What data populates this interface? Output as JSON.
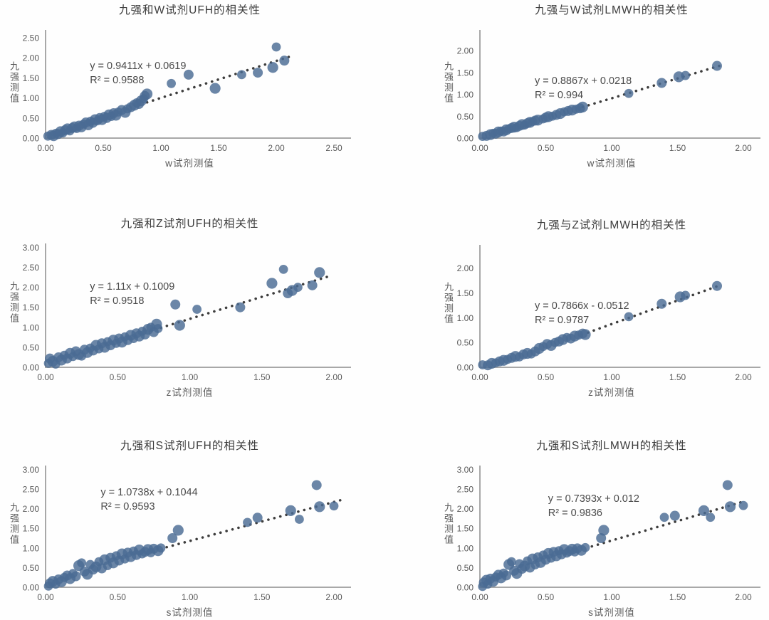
{
  "page": {
    "background": "#fefefe"
  },
  "colors": {
    "point": "#4a6b94",
    "trend_dots": "#3d3d3d",
    "axis": "#a8a8a8",
    "tick_text": "#595959",
    "title_text": "#3c3c3c",
    "equation_text": "#4a4a4a"
  },
  "chart_data": [
    {
      "type": "scatter",
      "title": "九强和W试剂UFH的相关性",
      "xlabel": "w试剂测值",
      "ylabel": "九强测值",
      "equation": "y = 0.9411x + 0.0619",
      "r_squared": "R² = 0.9588",
      "xlim": [
        0,
        2.5
      ],
      "ylim": [
        0,
        2.5
      ],
      "xticks": [
        "0.00",
        "0.50",
        "1.00",
        "1.50",
        "2.00",
        "2.50"
      ],
      "yticks": [
        "0.00",
        "0.50",
        "1.00",
        "1.50",
        "2.00",
        "2.50"
      ],
      "grid": false,
      "legend": false,
      "trend_line": {
        "x1": 0.88,
        "y1": 0.89,
        "x2": 2.15,
        "y2": 2.06
      },
      "points": [
        [
          0.02,
          0.05
        ],
        [
          0.05,
          0.08
        ],
        [
          0.07,
          0.06
        ],
        [
          0.09,
          0.12
        ],
        [
          0.11,
          0.1
        ],
        [
          0.13,
          0.16
        ],
        [
          0.15,
          0.13
        ],
        [
          0.17,
          0.2
        ],
        [
          0.19,
          0.23
        ],
        [
          0.21,
          0.18
        ],
        [
          0.23,
          0.25
        ],
        [
          0.25,
          0.28
        ],
        [
          0.27,
          0.24
        ],
        [
          0.29,
          0.31
        ],
        [
          0.31,
          0.28
        ],
        [
          0.33,
          0.35
        ],
        [
          0.35,
          0.39
        ],
        [
          0.37,
          0.33
        ],
        [
          0.39,
          0.42
        ],
        [
          0.41,
          0.38
        ],
        [
          0.43,
          0.46
        ],
        [
          0.45,
          0.43
        ],
        [
          0.47,
          0.5
        ],
        [
          0.49,
          0.46
        ],
        [
          0.51,
          0.54
        ],
        [
          0.53,
          0.5
        ],
        [
          0.55,
          0.58
        ],
        [
          0.57,
          0.54
        ],
        [
          0.59,
          0.62
        ],
        [
          0.61,
          0.57
        ],
        [
          0.63,
          0.65
        ],
        [
          0.66,
          0.7
        ],
        [
          0.69,
          0.64
        ],
        [
          0.71,
          0.73
        ],
        [
          0.74,
          0.77
        ],
        [
          0.77,
          0.82
        ],
        [
          0.79,
          0.88
        ],
        [
          0.81,
          0.85
        ],
        [
          0.83,
          0.93
        ],
        [
          0.85,
          0.98
        ],
        [
          0.86,
          1.05
        ],
        [
          0.88,
          1.1
        ],
        [
          1.09,
          1.36
        ],
        [
          1.24,
          1.58
        ],
        [
          1.47,
          1.24
        ],
        [
          1.7,
          1.58
        ],
        [
          1.84,
          1.63
        ],
        [
          1.97,
          1.76
        ],
        [
          2.0,
          2.27
        ],
        [
          2.07,
          1.93
        ]
      ]
    },
    {
      "type": "scatter",
      "title": "九强与W试剂LMWH的相关性",
      "xlabel": "w试剂测值",
      "ylabel": "九强测值",
      "equation": "y = 0.8867x + 0.0218",
      "r_squared": "R² = 0.994",
      "xlim": [
        0,
        2.0
      ],
      "ylim": [
        0,
        2.0
      ],
      "xticks": [
        "0.00",
        "0.50",
        "1.00",
        "1.50",
        "2.00"
      ],
      "yticks": [
        "0.00",
        "0.50",
        "1.00",
        "1.50",
        "2.00"
      ],
      "grid": false,
      "legend": false,
      "trend_line": {
        "x1": 0.78,
        "y1": 0.71,
        "x2": 1.84,
        "y2": 1.67
      },
      "points": [
        [
          0.02,
          0.04
        ],
        [
          0.05,
          0.05
        ],
        [
          0.08,
          0.08
        ],
        [
          0.1,
          0.11
        ],
        [
          0.12,
          0.1
        ],
        [
          0.14,
          0.14
        ],
        [
          0.16,
          0.16
        ],
        [
          0.18,
          0.15
        ],
        [
          0.2,
          0.19
        ],
        [
          0.22,
          0.21
        ],
        [
          0.24,
          0.23
        ],
        [
          0.26,
          0.25
        ],
        [
          0.28,
          0.24
        ],
        [
          0.3,
          0.28
        ],
        [
          0.32,
          0.31
        ],
        [
          0.34,
          0.3
        ],
        [
          0.36,
          0.34
        ],
        [
          0.38,
          0.36
        ],
        [
          0.4,
          0.38
        ],
        [
          0.42,
          0.4
        ],
        [
          0.44,
          0.41
        ],
        [
          0.48,
          0.44
        ],
        [
          0.5,
          0.47
        ],
        [
          0.52,
          0.49
        ],
        [
          0.55,
          0.5
        ],
        [
          0.58,
          0.53
        ],
        [
          0.61,
          0.56
        ],
        [
          0.64,
          0.6
        ],
        [
          0.67,
          0.62
        ],
        [
          0.7,
          0.64
        ],
        [
          0.73,
          0.66
        ],
        [
          0.76,
          0.68
        ],
        [
          0.78,
          0.71
        ],
        [
          1.13,
          1.02
        ],
        [
          1.38,
          1.26
        ],
        [
          1.51,
          1.4
        ],
        [
          1.56,
          1.43
        ],
        [
          1.8,
          1.65
        ]
      ]
    },
    {
      "type": "scatter",
      "title": "九强和Z试剂UFH的相关性",
      "xlabel": "z试剂测值",
      "ylabel": "九强测值",
      "equation": "y = 1.11x + 0.1009",
      "r_squared": "R² = 0.9518",
      "xlim": [
        0,
        2.0
      ],
      "ylim": [
        0,
        3.0
      ],
      "xticks": [
        "0.00",
        "0.50",
        "1.00",
        "1.50",
        "2.00"
      ],
      "yticks": [
        "0.00",
        "0.50",
        "1.00",
        "1.50",
        "2.00",
        "2.50",
        "3.00"
      ],
      "grid": false,
      "legend": false,
      "trend_line": {
        "x1": 0.8,
        "y1": 0.99,
        "x2": 1.97,
        "y2": 2.28
      },
      "points": [
        [
          0.02,
          0.1
        ],
        [
          0.03,
          0.22
        ],
        [
          0.05,
          0.15
        ],
        [
          0.07,
          0.08
        ],
        [
          0.09,
          0.25
        ],
        [
          0.11,
          0.18
        ],
        [
          0.13,
          0.3
        ],
        [
          0.15,
          0.22
        ],
        [
          0.17,
          0.35
        ],
        [
          0.19,
          0.27
        ],
        [
          0.21,
          0.4
        ],
        [
          0.23,
          0.32
        ],
        [
          0.25,
          0.28
        ],
        [
          0.27,
          0.44
        ],
        [
          0.29,
          0.37
        ],
        [
          0.31,
          0.48
        ],
        [
          0.33,
          0.42
        ],
        [
          0.35,
          0.55
        ],
        [
          0.37,
          0.46
        ],
        [
          0.39,
          0.6
        ],
        [
          0.41,
          0.5
        ],
        [
          0.43,
          0.64
        ],
        [
          0.45,
          0.55
        ],
        [
          0.47,
          0.68
        ],
        [
          0.49,
          0.6
        ],
        [
          0.51,
          0.72
        ],
        [
          0.53,
          0.63
        ],
        [
          0.55,
          0.76
        ],
        [
          0.57,
          0.68
        ],
        [
          0.59,
          0.8
        ],
        [
          0.61,
          0.72
        ],
        [
          0.63,
          0.85
        ],
        [
          0.65,
          0.78
        ],
        [
          0.67,
          0.9
        ],
        [
          0.69,
          0.82
        ],
        [
          0.71,
          0.95
        ],
        [
          0.73,
          1.0
        ],
        [
          0.75,
          0.88
        ],
        [
          0.77,
          1.08
        ],
        [
          0.78,
          0.97
        ],
        [
          0.9,
          1.57
        ],
        [
          0.93,
          1.05
        ],
        [
          1.05,
          1.45
        ],
        [
          1.35,
          1.5
        ],
        [
          1.57,
          2.1
        ],
        [
          1.65,
          2.45
        ],
        [
          1.68,
          1.85
        ],
        [
          1.71,
          1.92
        ],
        [
          1.75,
          2.0
        ],
        [
          1.85,
          2.05
        ],
        [
          1.9,
          2.37
        ]
      ]
    },
    {
      "type": "scatter",
      "title": "九强与Z试剂LMWH的相关性",
      "xlabel": "z试剂测值",
      "ylabel": "九强测值",
      "equation": "y = 0.7866x - 0.0512",
      "r_squared": "R² = 0.9787",
      "xlim": [
        0,
        2.0
      ],
      "ylim": [
        0,
        2.0
      ],
      "xticks": [
        "0.00",
        "0.50",
        "1.00",
        "1.50",
        "2.00"
      ],
      "yticks": [
        "0.00",
        "0.50",
        "1.00",
        "1.50",
        "2.00"
      ],
      "grid": false,
      "legend": false,
      "trend_line": {
        "x1": 0.82,
        "y1": 0.7,
        "x2": 1.83,
        "y2": 1.66
      },
      "points": [
        [
          0.02,
          0.05
        ],
        [
          0.06,
          0.04
        ],
        [
          0.09,
          0.08
        ],
        [
          0.12,
          0.09
        ],
        [
          0.15,
          0.12
        ],
        [
          0.18,
          0.14
        ],
        [
          0.21,
          0.16
        ],
        [
          0.24,
          0.19
        ],
        [
          0.27,
          0.22
        ],
        [
          0.3,
          0.21
        ],
        [
          0.33,
          0.26
        ],
        [
          0.36,
          0.28
        ],
        [
          0.39,
          0.27
        ],
        [
          0.42,
          0.32
        ],
        [
          0.45,
          0.38
        ],
        [
          0.48,
          0.42
        ],
        [
          0.51,
          0.47
        ],
        [
          0.54,
          0.44
        ],
        [
          0.57,
          0.5
        ],
        [
          0.6,
          0.52
        ],
        [
          0.63,
          0.56
        ],
        [
          0.66,
          0.6
        ],
        [
          0.69,
          0.58
        ],
        [
          0.72,
          0.63
        ],
        [
          0.75,
          0.65
        ],
        [
          0.78,
          0.68
        ],
        [
          0.8,
          0.66
        ],
        [
          1.13,
          1.02
        ],
        [
          1.38,
          1.28
        ],
        [
          1.52,
          1.42
        ],
        [
          1.56,
          1.45
        ],
        [
          1.8,
          1.64
        ]
      ]
    },
    {
      "type": "scatter",
      "title": "九强和S试剂UFH的相关性",
      "xlabel": "s试剂测值",
      "ylabel": "九强测值",
      "equation": "y = 1.0738x + 0.1044",
      "r_squared": "R² = 0.9593",
      "xlim": [
        0,
        2.0
      ],
      "ylim": [
        0,
        3.0
      ],
      "xticks": [
        "0.00",
        "0.50",
        "1.00",
        "1.50",
        "2.00"
      ],
      "yticks": [
        "0.00",
        "0.50",
        "1.00",
        "1.50",
        "2.00",
        "2.50",
        "3.00"
      ],
      "grid": false,
      "legend": false,
      "trend_line": {
        "x1": 0.84,
        "y1": 1.02,
        "x2": 2.05,
        "y2": 2.22
      },
      "points": [
        [
          0.02,
          0.03
        ],
        [
          0.03,
          0.1
        ],
        [
          0.05,
          0.15
        ],
        [
          0.07,
          0.08
        ],
        [
          0.09,
          0.2
        ],
        [
          0.11,
          0.14
        ],
        [
          0.13,
          0.25
        ],
        [
          0.15,
          0.3
        ],
        [
          0.17,
          0.22
        ],
        [
          0.19,
          0.35
        ],
        [
          0.21,
          0.28
        ],
        [
          0.23,
          0.55
        ],
        [
          0.25,
          0.62
        ],
        [
          0.27,
          0.4
        ],
        [
          0.29,
          0.33
        ],
        [
          0.31,
          0.58
        ],
        [
          0.33,
          0.45
        ],
        [
          0.35,
          0.52
        ],
        [
          0.37,
          0.65
        ],
        [
          0.39,
          0.48
        ],
        [
          0.41,
          0.7
        ],
        [
          0.43,
          0.55
        ],
        [
          0.45,
          0.75
        ],
        [
          0.47,
          0.62
        ],
        [
          0.49,
          0.8
        ],
        [
          0.51,
          0.68
        ],
        [
          0.53,
          0.85
        ],
        [
          0.55,
          0.72
        ],
        [
          0.57,
          0.88
        ],
        [
          0.59,
          0.78
        ],
        [
          0.61,
          0.92
        ],
        [
          0.63,
          0.82
        ],
        [
          0.65,
          0.95
        ],
        [
          0.67,
          0.85
        ],
        [
          0.69,
          0.9
        ],
        [
          0.71,
          0.96
        ],
        [
          0.73,
          0.88
        ],
        [
          0.75,
          0.98
        ],
        [
          0.78,
          0.93
        ],
        [
          0.8,
          1.0
        ],
        [
          0.88,
          1.25
        ],
        [
          0.92,
          1.45
        ],
        [
          1.4,
          1.65
        ],
        [
          1.47,
          1.77
        ],
        [
          1.7,
          1.95
        ],
        [
          1.76,
          1.73
        ],
        [
          1.88,
          2.6
        ],
        [
          1.9,
          2.05
        ],
        [
          2.0,
          2.07
        ]
      ]
    },
    {
      "type": "scatter",
      "title": "九强和S试剂LMWH的相关性",
      "xlabel": "s试剂测值",
      "ylabel": "九强测值",
      "equation": "y = 0.7393x + 0.012",
      "r_squared": "R² = 0.9836",
      "xlim": [
        0,
        2.0
      ],
      "ylim": [
        0,
        3.0
      ],
      "xticks": [
        "0.00",
        "0.50",
        "1.00",
        "1.50",
        "2.00"
      ],
      "yticks": [
        "0.00",
        "0.50",
        "1.00",
        "1.50",
        "2.00",
        "2.50",
        "3.00"
      ],
      "grid": false,
      "legend": false,
      "trend_line": {
        "x1": 0.85,
        "y1": 1.04,
        "x2": 2.02,
        "y2": 2.2
      },
      "points": [
        [
          0.02,
          0.02
        ],
        [
          0.03,
          0.12
        ],
        [
          0.05,
          0.18
        ],
        [
          0.06,
          0.08
        ],
        [
          0.08,
          0.22
        ],
        [
          0.1,
          0.15
        ],
        [
          0.12,
          0.26
        ],
        [
          0.14,
          0.32
        ],
        [
          0.16,
          0.24
        ],
        [
          0.18,
          0.36
        ],
        [
          0.2,
          0.3
        ],
        [
          0.22,
          0.58
        ],
        [
          0.24,
          0.65
        ],
        [
          0.26,
          0.42
        ],
        [
          0.28,
          0.35
        ],
        [
          0.3,
          0.6
        ],
        [
          0.32,
          0.47
        ],
        [
          0.34,
          0.54
        ],
        [
          0.36,
          0.67
        ],
        [
          0.38,
          0.5
        ],
        [
          0.4,
          0.72
        ],
        [
          0.42,
          0.57
        ],
        [
          0.44,
          0.76
        ],
        [
          0.46,
          0.63
        ],
        [
          0.48,
          0.82
        ],
        [
          0.5,
          0.7
        ],
        [
          0.52,
          0.86
        ],
        [
          0.54,
          0.74
        ],
        [
          0.56,
          0.9
        ],
        [
          0.58,
          0.8
        ],
        [
          0.6,
          0.93
        ],
        [
          0.62,
          0.84
        ],
        [
          0.64,
          0.96
        ],
        [
          0.66,
          0.87
        ],
        [
          0.68,
          0.92
        ],
        [
          0.7,
          0.97
        ],
        [
          0.72,
          0.9
        ],
        [
          0.74,
          0.99
        ],
        [
          0.77,
          0.94
        ],
        [
          0.8,
          1.01
        ],
        [
          0.92,
          1.25
        ],
        [
          0.94,
          1.45
        ],
        [
          1.4,
          1.78
        ],
        [
          1.48,
          1.82
        ],
        [
          1.7,
          1.95
        ],
        [
          1.75,
          1.78
        ],
        [
          1.88,
          2.6
        ],
        [
          1.9,
          2.05
        ],
        [
          2.0,
          2.08
        ]
      ]
    }
  ]
}
